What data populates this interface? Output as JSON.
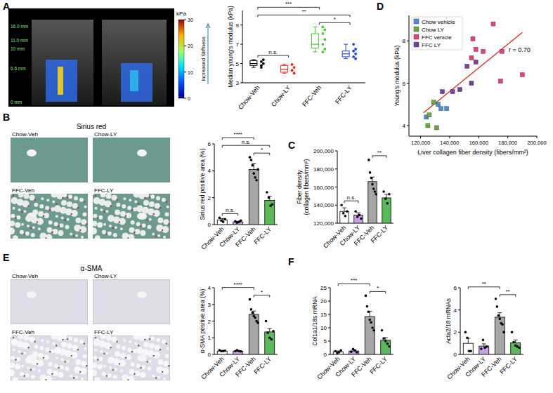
{
  "panel_labels": [
    "A",
    "B",
    "C",
    "D",
    "E",
    "F"
  ],
  "ultrasound": {
    "depth_labels": [
      "16.0 mm",
      "11.0 mm",
      "10 mm",
      "6.6 mm",
      "0 mm"
    ],
    "colorbar": {
      "label": "kPa",
      "caption": "Increased Stiffness",
      "range": [
        0,
        30
      ],
      "ticks": [
        0,
        10,
        20,
        30
      ]
    }
  },
  "micrographs": [
    {
      "title": "Sirius red",
      "labels": [
        "Chow-Veh",
        "Chow-LY",
        "FFC-Veh",
        "FFC-LY"
      ]
    },
    {
      "title": "α-SMA",
      "labels": [
        "Chow-Veh",
        "Chow-LY",
        "FFC-Veh",
        "FFC-LY"
      ]
    }
  ],
  "chart_data": [
    {
      "type": "box",
      "ylabel": "Median young's modulus (kPa)",
      "categories": [
        "Chow-Veh",
        "Chow-LY",
        "FFC-Veh",
        "FFC-LY"
      ],
      "colors": [
        "#000000",
        "#e8231f",
        "#3fcf2a",
        "#1f3fe0"
      ],
      "boxes": [
        {
          "min": 4.6,
          "q1": 4.8,
          "median": 5.0,
          "q3": 5.3,
          "max": 5.4
        },
        {
          "min": 4.0,
          "q1": 4.1,
          "median": 4.4,
          "q3": 4.8,
          "max": 4.9
        },
        {
          "min": 6.2,
          "q1": 6.6,
          "median": 7.0,
          "q3": 8.1,
          "max": 8.8
        },
        {
          "min": 5.5,
          "q1": 5.7,
          "median": 6.0,
          "q3": 6.3,
          "max": 7.0
        }
      ],
      "points": [
        [
          5.2,
          5.0,
          4.8,
          5.4,
          4.6
        ],
        [
          4.3,
          4.0,
          4.9,
          4.6
        ],
        [
          8.8,
          8.5,
          8.1,
          7.5,
          7.0,
          6.5,
          6.2
        ],
        [
          7.0,
          6.5,
          6.3,
          6.0,
          5.7,
          5.5
        ]
      ],
      "ylim": [
        3,
        10.5
      ],
      "yticks": [
        3,
        5,
        7,
        9
      ],
      "annotations": [
        {
          "between": [
            "Chow-Veh",
            "Chow-LY"
          ],
          "text": "n.s."
        },
        {
          "between": [
            "FFC-Veh",
            "FFC-LY"
          ],
          "text": "*"
        },
        {
          "between": [
            "Chow-Veh",
            "FFC-LY"
          ],
          "text": "**"
        },
        {
          "between": [
            "Chow-Veh",
            "FFC-Veh"
          ],
          "text": "***"
        }
      ]
    },
    {
      "type": "scatter",
      "xlabel": "Liver collagen fiber density (fibers/mm²)",
      "ylabel": "Young's modulus (kPa)",
      "legend": "upper left",
      "marker": "square",
      "annotation": "r = 0.70",
      "fit": {
        "x": [
          122000,
          190000
        ],
        "y": [
          4.6,
          8.4
        ],
        "color": "#e8231f"
      },
      "series": [
        {
          "name": "Chow vehicle",
          "color": "#4a90d9",
          "x": [
            124000,
            132000,
            134000,
            138000
          ],
          "y": [
            4.4,
            5.0,
            4.8,
            4.8
          ]
        },
        {
          "name": "Chow LY",
          "color": "#6aaa3a",
          "x": [
            125000,
            129000,
            131000,
            126000
          ],
          "y": [
            4.0,
            5.1,
            3.9,
            4.5
          ]
        },
        {
          "name": "FFC vehicle",
          "color": "#e8417a",
          "x": [
            170000,
            156000,
            158000,
            163000,
            176000,
            155000,
            190000,
            175000
          ],
          "y": [
            8.8,
            8.1,
            7.6,
            7.5,
            7.5,
            7.2,
            6.4,
            6.1
          ]
        },
        {
          "name": "FFC LY",
          "color": "#7b3fa0",
          "x": [
            147000,
            142000,
            155000,
            152000,
            158000,
            135000
          ],
          "y": [
            5.7,
            5.6,
            6.0,
            6.8,
            7.0,
            5.6
          ]
        }
      ],
      "xlim": [
        112000,
        200000
      ],
      "xticks": [
        {
          "value": 120000,
          "label": "120,000"
        },
        {
          "value": 140000,
          "label": "140,000"
        },
        {
          "value": 160000,
          "label": "160,000"
        },
        {
          "value": 180000,
          "label": "180,000"
        },
        {
          "value": 200000,
          "label": "200,000"
        }
      ],
      "ylim": [
        3.5,
        9.2
      ],
      "yticks": [
        4,
        6,
        8
      ]
    },
    {
      "type": "bar",
      "ylabel": "Sirius red positive area (%)",
      "categories": [
        "Chow-Veh",
        "Chow-LY",
        "FFC-Veh",
        "FFC-LY"
      ],
      "colors": [
        "#ffffff",
        "#c9a0e6",
        "#a6a6a6",
        "#5bb85b"
      ],
      "values": [
        0.35,
        0.2,
        4.1,
        1.8
      ],
      "errors": [
        0.1,
        0.04,
        0.45,
        0.3
      ],
      "points": [
        [
          0.5,
          0.3,
          0.2,
          0.4
        ],
        [
          0.25,
          0.15,
          0.2,
          0.3
        ],
        [
          5.0,
          4.8,
          4.4,
          3.8,
          3.5,
          3.3,
          4.1
        ],
        [
          2.4,
          2.0,
          1.4,
          1.5
        ]
      ],
      "ylim": [
        0,
        6
      ],
      "yticks": [
        0,
        2,
        4,
        6
      ],
      "annotations": [
        {
          "between": [
            "Chow-Veh",
            "Chow-LY"
          ],
          "text": "n.s."
        },
        {
          "between": [
            "FFC-Veh",
            "FFC-LY"
          ],
          "text": "*"
        },
        {
          "between": [
            "Chow-Veh",
            "FFC-LY"
          ],
          "text": "n.s."
        },
        {
          "between": [
            "Chow-Veh",
            "FFC-Veh"
          ],
          "text": "****"
        }
      ]
    },
    {
      "type": "bar",
      "ylabel": [
        "Fiber density",
        "(collagen fibers/mm²)"
      ],
      "categories": [
        "Chow-Veh",
        "Chow-LY",
        "FFC-Veh",
        "FFC-LY"
      ],
      "colors": [
        "#ffffff",
        "#c9a0e6",
        "#a6a6a6",
        "#5bb85b"
      ],
      "values": [
        133000,
        129000,
        166000,
        148000
      ],
      "errors": [
        4000,
        2500,
        5000,
        4000
      ],
      "points": [
        [
          140000,
          131000,
          128000,
          133000
        ],
        [
          133000,
          127000,
          129000,
          125000
        ],
        [
          190000,
          176000,
          170000,
          163000,
          158000,
          155000,
          152000
        ],
        [
          155000,
          147000,
          142000,
          152000
        ]
      ],
      "ylim": [
        120000,
        200000
      ],
      "yticks": [
        {
          "value": 120000,
          "label": "120,000"
        },
        {
          "value": 140000,
          "label": "140,000"
        },
        {
          "value": 160000,
          "label": "160,000"
        },
        {
          "value": 180000,
          "label": "180,000"
        },
        {
          "value": 200000,
          "label": "200,000"
        }
      ],
      "annotations": [
        {
          "between": [
            "Chow-Veh",
            "Chow-LY"
          ],
          "text": "n.s."
        },
        {
          "between": [
            "FFC-Veh",
            "FFC-LY"
          ],
          "text": "**"
        }
      ]
    },
    {
      "type": "bar",
      "ylabel": "α-SMA positive area (%)",
      "categories": [
        "Chow-Veh",
        "Chow-LY",
        "FFC-Veh",
        "FFC-LY"
      ],
      "colors": [
        "#ffffff",
        "#c9a0e6",
        "#a6a6a6",
        "#5bb85b"
      ],
      "values": [
        0.2,
        0.2,
        2.4,
        1.35
      ],
      "errors": [
        0.02,
        0.02,
        0.2,
        0.2
      ],
      "points": [
        [
          0.25,
          0.2,
          0.2,
          0.22
        ],
        [
          0.2,
          0.25,
          0.2,
          0.18
        ],
        [
          3.3,
          2.7,
          2.5,
          2.3,
          2.2,
          2.0,
          1.9
        ],
        [
          2.0,
          1.3,
          1.0,
          0.9,
          1.4
        ]
      ],
      "ylim": [
        0,
        4
      ],
      "yticks": [
        0,
        1,
        2,
        3,
        4
      ],
      "annotations": [
        {
          "between": [
            "FFC-Veh",
            "FFC-LY"
          ],
          "text": "*"
        },
        {
          "between": [
            "Chow-Veh",
            "FFC-Veh"
          ],
          "text": "****"
        }
      ]
    },
    {
      "type": "bar",
      "ylabel": "Col1a1/18s mRNA",
      "categories": [
        "Chow-Veh",
        "Chow-LY",
        "FFC-Veh",
        "FFC-LY"
      ],
      "colors": [
        "#ffffff",
        "#c9a0e6",
        "#a6a6a6",
        "#5bb85b"
      ],
      "values": [
        1.0,
        1.3,
        14.2,
        5.3
      ],
      "errors": [
        0.3,
        0.4,
        2.0,
        1.0
      ],
      "points": [
        [
          1.2,
          0.5,
          0.8,
          1.5
        ],
        [
          1.0,
          2.0,
          1.5,
          0.8
        ],
        [
          22,
          18,
          16,
          13,
          12,
          10,
          9
        ],
        [
          9,
          6,
          5,
          4,
          3
        ]
      ],
      "ylim": [
        0,
        25
      ],
      "yticks": [
        0,
        5,
        10,
        15,
        20,
        25
      ],
      "annotations": [
        {
          "between": [
            "FFC-Veh",
            "FFC-LY"
          ],
          "text": "*"
        },
        {
          "between": [
            "Chow-Veh",
            "FFC-Veh"
          ],
          "text": "***"
        }
      ]
    },
    {
      "type": "bar",
      "ylabel": "Acta2/18 mRNAs",
      "categories": [
        "Chow-Veh",
        "Chow-LY",
        "FFC-Veh",
        "FFC-LY"
      ],
      "colors": [
        "#ffffff",
        "#c9a0e6",
        "#a6a6a6",
        "#5bb85b"
      ],
      "values": [
        1.0,
        0.75,
        3.35,
        1.05
      ],
      "errors": [
        0.45,
        0.2,
        0.4,
        0.25
      ],
      "points": [
        [
          2.0,
          1.5,
          0.3,
          0.3
        ],
        [
          0.5,
          1.3,
          0.6,
          0.7
        ],
        [
          5.0,
          4.3,
          3.5,
          3.2,
          2.8,
          2.7,
          2.0
        ],
        [
          2.0,
          1.1,
          0.8,
          0.7,
          0.6
        ]
      ],
      "ylim": [
        0,
        6
      ],
      "yticks": [
        0,
        2,
        4,
        6
      ],
      "annotations": [
        {
          "between": [
            "FFC-Veh",
            "FFC-LY"
          ],
          "text": "**"
        },
        {
          "between": [
            "Chow-Veh",
            "FFC-Veh"
          ],
          "text": "**"
        }
      ]
    }
  ]
}
